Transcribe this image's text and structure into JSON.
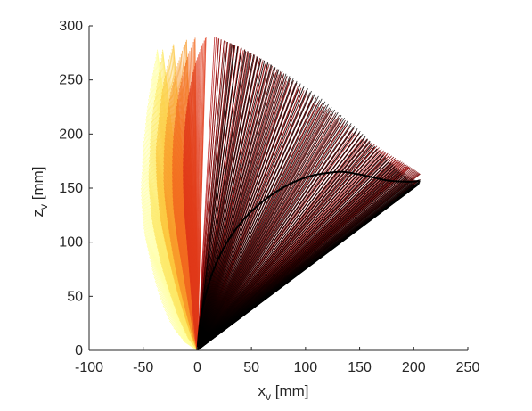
{
  "chart_data": {
    "type": "line",
    "title": "",
    "xlabel": {
      "main": "x",
      "sub": "v",
      "unit": " [mm]"
    },
    "ylabel": {
      "main": "z",
      "sub": "v",
      "unit": " [mm]"
    },
    "xlim": [
      -100,
      250
    ],
    "ylim": [
      0,
      300
    ],
    "xticks": [
      -100,
      -50,
      0,
      50,
      100,
      150,
      200,
      250
    ],
    "yticks": [
      0,
      50,
      100,
      150,
      200,
      250,
      300
    ],
    "grid": false,
    "legend": "none",
    "colormap": "hot (yellow to black)",
    "colors": [
      "#000000",
      "#3a0000",
      "#7a0000",
      "#b41010",
      "#e03a1a",
      "#f26a20",
      "#f89a2a",
      "#fbc63c",
      "#fde865",
      "#ffff99"
    ],
    "pivot": [
      0,
      0
    ],
    "series_description": "Family of line segments drawn from the origin (0,0) to points along a curved trajectory; line color varies along a yellow-red-black colormap.",
    "trajectories": [
      {
        "name": "",
        "color_index": 9,
        "endpoints": [
          [
            -37,
            278
          ],
          [
            -40,
            262
          ],
          [
            -43,
            245
          ],
          [
            -46,
            226
          ],
          [
            -48,
            207
          ],
          [
            -50,
            187
          ],
          [
            -51,
            168
          ],
          [
            -52,
            150
          ],
          [
            -51,
            130
          ],
          [
            -49,
            110
          ],
          [
            -45,
            90
          ],
          [
            -40,
            68
          ],
          [
            -33,
            45
          ],
          [
            -24,
            24
          ],
          [
            -12,
            8
          ]
        ]
      },
      {
        "name": "",
        "color_index": 8,
        "endpoints": [
          [
            -32,
            278
          ],
          [
            -35,
            260
          ],
          [
            -38,
            241
          ],
          [
            -41,
            222
          ],
          [
            -43,
            202
          ],
          [
            -44,
            182
          ],
          [
            -45,
            162
          ],
          [
            -44,
            142
          ],
          [
            -42,
            122
          ],
          [
            -38,
            100
          ],
          [
            -33,
            78
          ],
          [
            -26,
            55
          ],
          [
            -18,
            32
          ],
          [
            -9,
            12
          ]
        ]
      },
      {
        "name": "",
        "color_index": 7,
        "endpoints": [
          [
            -22,
            283
          ],
          [
            -27,
            266
          ],
          [
            -31,
            248
          ],
          [
            -34,
            229
          ],
          [
            -36,
            209
          ],
          [
            -38,
            189
          ],
          [
            -38,
            169
          ],
          [
            -37,
            149
          ],
          [
            -35,
            128
          ],
          [
            -31,
            106
          ],
          [
            -26,
            84
          ],
          [
            -20,
            60
          ],
          [
            -13,
            36
          ],
          [
            -6,
            14
          ]
        ]
      },
      {
        "name": "",
        "color_index": 6,
        "endpoints": [
          [
            -10,
            287
          ],
          [
            -16,
            271
          ],
          [
            -21,
            254
          ],
          [
            -25,
            236
          ],
          [
            -28,
            216
          ],
          [
            -30,
            196
          ],
          [
            -31,
            175
          ],
          [
            -31,
            154
          ],
          [
            -29,
            132
          ],
          [
            -26,
            110
          ],
          [
            -22,
            86
          ],
          [
            -17,
            62
          ],
          [
            -11,
            38
          ],
          [
            -5,
            15
          ]
        ]
      },
      {
        "name": "",
        "color_index": 5,
        "endpoints": [
          [
            -2,
            289
          ],
          [
            -8,
            274
          ],
          [
            -13,
            257
          ],
          [
            -17,
            239
          ],
          [
            -20,
            219
          ],
          [
            -22,
            198
          ],
          [
            -23,
            176
          ],
          [
            -23,
            154
          ],
          [
            -22,
            132
          ],
          [
            -19,
            108
          ],
          [
            -15,
            84
          ],
          [
            -11,
            60
          ],
          [
            -7,
            36
          ],
          [
            -3,
            14
          ]
        ]
      },
      {
        "name": "",
        "color_index": 4,
        "endpoints": [
          [
            8,
            290
          ],
          [
            2,
            276
          ],
          [
            -3,
            260
          ],
          [
            -7,
            242
          ],
          [
            -10,
            222
          ],
          [
            -12,
            200
          ],
          [
            -13,
            178
          ],
          [
            -13,
            155
          ],
          [
            -12,
            131
          ],
          [
            -10,
            107
          ],
          [
            -8,
            82
          ],
          [
            -6,
            57
          ],
          [
            -4,
            33
          ],
          [
            -2,
            12
          ]
        ]
      },
      {
        "name": "",
        "color_index": 3,
        "endpoints": [
          [
            16,
            290
          ],
          [
            30,
            284
          ],
          [
            45,
            276
          ],
          [
            60,
            266
          ],
          [
            75,
            255
          ],
          [
            90,
            243
          ],
          [
            105,
            231
          ],
          [
            120,
            219
          ],
          [
            135,
            208
          ],
          [
            148,
            198
          ],
          [
            160,
            190
          ],
          [
            172,
            183
          ],
          [
            182,
            177
          ],
          [
            190,
            172
          ],
          [
            196,
            169
          ]
        ]
      },
      {
        "name": "",
        "color_index": 2,
        "endpoints": [
          [
            20,
            288
          ],
          [
            38,
            281
          ],
          [
            55,
            272
          ],
          [
            72,
            261
          ],
          [
            88,
            249
          ],
          [
            104,
            236
          ],
          [
            120,
            223
          ],
          [
            136,
            211
          ],
          [
            152,
            199
          ],
          [
            166,
            189
          ],
          [
            178,
            181
          ],
          [
            188,
            175
          ],
          [
            196,
            170
          ],
          [
            202,
            166
          ],
          [
            206,
            163
          ]
        ]
      },
      {
        "name": "",
        "color_index": 1,
        "endpoints": [
          [
            26,
            286
          ],
          [
            44,
            278
          ],
          [
            62,
            268
          ],
          [
            80,
            256
          ],
          [
            98,
            243
          ],
          [
            116,
            229
          ],
          [
            134,
            215
          ],
          [
            150,
            201
          ],
          [
            164,
            188
          ],
          [
            176,
            177
          ],
          [
            186,
            168
          ],
          [
            194,
            162
          ],
          [
            200,
            158
          ],
          [
            204,
            157
          ],
          [
            206,
            158
          ]
        ]
      },
      {
        "name": "",
        "color_index": 0,
        "endpoints": [
          [
            32,
            283
          ],
          [
            52,
            273
          ],
          [
            72,
            262
          ],
          [
            92,
            249
          ],
          [
            112,
            235
          ],
          [
            130,
            220
          ],
          [
            148,
            205
          ],
          [
            162,
            191
          ],
          [
            174,
            178
          ],
          [
            184,
            168
          ],
          [
            192,
            160
          ],
          [
            198,
            155
          ],
          [
            202,
            152
          ],
          [
            205,
            154
          ],
          [
            206,
            157
          ]
        ]
      }
    ],
    "lower_envelope": {
      "name": "",
      "color_index": 0,
      "points": [
        [
          0,
          0
        ],
        [
          2,
          22
        ],
        [
          6,
          44
        ],
        [
          12,
          66
        ],
        [
          20,
          86
        ],
        [
          30,
          104
        ],
        [
          42,
          120
        ],
        [
          56,
          134
        ],
        [
          72,
          146
        ],
        [
          88,
          155
        ],
        [
          104,
          161
        ],
        [
          120,
          164
        ],
        [
          134,
          165
        ],
        [
          148,
          163
        ],
        [
          162,
          160
        ],
        [
          176,
          157
        ],
        [
          190,
          156
        ],
        [
          200,
          156
        ],
        [
          205,
          157
        ]
      ]
    }
  }
}
